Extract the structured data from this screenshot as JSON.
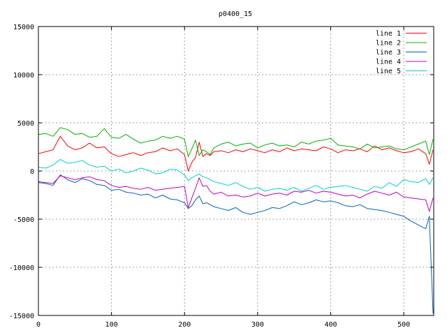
{
  "chart_data": {
    "type": "line",
    "title": "p0400_15",
    "xlabel": "",
    "ylabel": "",
    "xlim": [
      0,
      541
    ],
    "ylim": [
      -15000,
      15000
    ],
    "xticks": [
      "0",
      "100",
      "200",
      "300",
      "400",
      "500"
    ],
    "yticks": [
      "-15000",
      "-10000",
      "-5000",
      "0",
      "5000",
      "10000",
      "15000"
    ],
    "xtick_values": [
      0,
      100,
      200,
      300,
      400,
      500
    ],
    "ytick_values": [
      -15000,
      -10000,
      -5000,
      0,
      5000,
      10000,
      15000
    ],
    "grid": true,
    "legend_position": "top-right",
    "x": [
      0,
      10,
      20,
      30,
      40,
      50,
      60,
      70,
      80,
      90,
      100,
      110,
      120,
      130,
      140,
      150,
      160,
      170,
      180,
      190,
      200,
      205,
      210,
      215,
      220,
      225,
      230,
      235,
      240,
      250,
      260,
      270,
      280,
      290,
      300,
      310,
      320,
      330,
      340,
      350,
      360,
      370,
      380,
      390,
      400,
      410,
      420,
      430,
      440,
      450,
      460,
      470,
      480,
      490,
      500,
      510,
      520,
      530,
      535,
      540
    ],
    "series": [
      {
        "name": "line 1",
        "color": "#ff0000",
        "values": [
          1800,
          2000,
          2200,
          3600,
          2600,
          2200,
          2400,
          2900,
          2400,
          2500,
          1800,
          1500,
          1700,
          1900,
          1600,
          1900,
          2000,
          2400,
          2100,
          2300,
          1700,
          0,
          900,
          1400,
          3000,
          1500,
          1800,
          1600,
          2000,
          2100,
          1900,
          2200,
          2000,
          2300,
          2100,
          1900,
          2200,
          2000,
          2400,
          2100,
          2300,
          2200,
          2100,
          2500,
          2300,
          1900,
          2200,
          2100,
          2300,
          2000,
          2600,
          2200,
          2400,
          2100,
          1900,
          2000,
          2300,
          1800,
          700,
          2200
        ]
      },
      {
        "name": "line 2",
        "color": "#00b000",
        "values": [
          3800,
          3900,
          3600,
          4500,
          4300,
          3800,
          3900,
          3500,
          3600,
          4400,
          3500,
          3400,
          3800,
          3300,
          2900,
          3100,
          3200,
          3600,
          3400,
          3600,
          3300,
          1500,
          2300,
          3200,
          1600,
          2200,
          2000,
          1700,
          2400,
          2800,
          3000,
          2600,
          2800,
          2900,
          2400,
          2700,
          2900,
          2600,
          2700,
          2500,
          3000,
          2800,
          3100,
          3200,
          3400,
          2700,
          2600,
          2500,
          2300,
          2800,
          2400,
          2500,
          2600,
          2300,
          2200,
          2500,
          2800,
          3100,
          1700,
          3300
        ]
      },
      {
        "name": "line 3",
        "color": "#0060c8",
        "values": [
          -1200,
          -1300,
          -1500,
          -400,
          -900,
          -1200,
          -800,
          -1000,
          -1400,
          -1500,
          -2000,
          -1900,
          -2200,
          -2300,
          -2500,
          -2400,
          -2800,
          -2500,
          -2900,
          -3000,
          -3300,
          -3900,
          -3600,
          -3000,
          -2600,
          -3400,
          -3300,
          -3500,
          -3700,
          -3900,
          -4100,
          -3800,
          -4300,
          -4500,
          -4300,
          -4100,
          -3800,
          -3900,
          -3600,
          -3200,
          -3500,
          -3300,
          -3000,
          -3200,
          -3100,
          -3300,
          -3600,
          -3700,
          -3500,
          -3900,
          -4000,
          -4100,
          -4300,
          -4500,
          -4700,
          -5200,
          -5600,
          -6000,
          -4700,
          -14800
        ]
      },
      {
        "name": "line 4",
        "color": "#c000c0",
        "values": [
          -1100,
          -1200,
          -1300,
          -500,
          -700,
          -900,
          -700,
          -600,
          -900,
          -1000,
          -1500,
          -1700,
          -1600,
          -1800,
          -1900,
          -1700,
          -2000,
          -1900,
          -1800,
          -1700,
          -1600,
          -3800,
          -2800,
          -1800,
          -700,
          -1600,
          -1500,
          -2100,
          -2400,
          -2200,
          -2600,
          -2500,
          -2700,
          -2600,
          -2300,
          -2600,
          -2400,
          -2300,
          -2500,
          -2100,
          -2200,
          -2000,
          -2300,
          -2100,
          -2200,
          -2400,
          -2600,
          -2500,
          -2800,
          -2400,
          -2100,
          -2300,
          -2500,
          -2200,
          -2700,
          -2800,
          -2900,
          -3000,
          -4200,
          -2800
        ]
      },
      {
        "name": "line 5",
        "color": "#00d0d0",
        "values": [
          400,
          300,
          600,
          1200,
          800,
          900,
          1100,
          600,
          400,
          500,
          0,
          200,
          -200,
          0,
          300,
          100,
          -300,
          -200,
          200,
          100,
          -400,
          -1000,
          -700,
          -500,
          -300,
          -600,
          -700,
          -900,
          -1100,
          -1300,
          -1500,
          -1200,
          -1600,
          -1900,
          -1700,
          -2100,
          -1900,
          -1800,
          -2000,
          -1700,
          -2100,
          -1800,
          -1500,
          -1900,
          -1700,
          -1600,
          -1500,
          -1700,
          -1900,
          -2100,
          -1600,
          -1800,
          -1200,
          -1600,
          -900,
          -1100,
          -1200,
          -800,
          -1400,
          -700
        ]
      }
    ]
  }
}
